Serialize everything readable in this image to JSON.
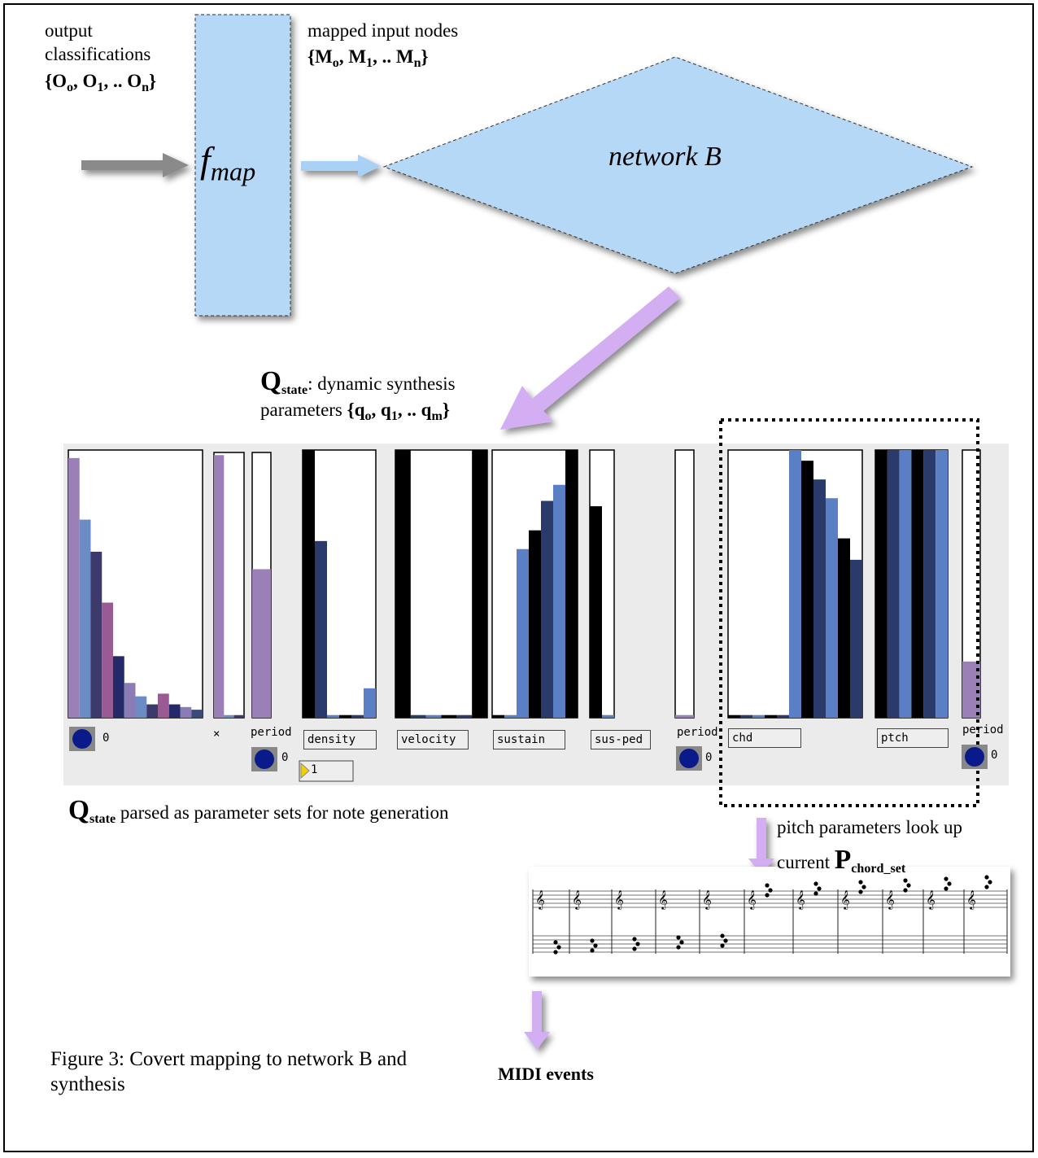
{
  "texts": {
    "output_label": "output classifications",
    "output_set": [
      {
        "text": "{O"
      },
      {
        "text": "o",
        "sub": true
      },
      {
        "text": ", O"
      },
      {
        "text": "1",
        "sub": true
      },
      {
        "text": ", .. O"
      },
      {
        "text": "n",
        "sub": true
      },
      {
        "text": "}"
      }
    ],
    "mapped_label": "mapped input nodes",
    "mapped_set": [
      {
        "text": "{M"
      },
      {
        "text": "o",
        "sub": true
      },
      {
        "text": ", M"
      },
      {
        "text": "1",
        "sub": true
      },
      {
        "text": ", .. M"
      },
      {
        "text": "n",
        "sub": true
      },
      {
        "text": "}"
      }
    ],
    "fmap": [
      {
        "text": "f"
      },
      {
        "text": "map",
        "sub": true
      }
    ],
    "network": "network B",
    "qstate_line1": [
      {
        "text": "Q",
        "bold": true,
        "big": true
      },
      {
        "text": "state",
        "bold": true,
        "sub": true
      },
      {
        "text": ": dynamic synthesis"
      }
    ],
    "qstate_line2": [
      {
        "text": "parameters "
      },
      {
        "text": "{q",
        "bold": true
      },
      {
        "text": "o",
        "bold": true,
        "sub": true
      },
      {
        "text": ", q",
        "bold": true
      },
      {
        "text": "1",
        "bold": true,
        "sub": true
      },
      {
        "text": ", .. q",
        "bold": true
      },
      {
        "text": "m",
        "bold": true,
        "sub": true
      },
      {
        "text": "}",
        "bold": true
      }
    ],
    "parsed": [
      {
        "text": "Q",
        "bold": true,
        "big": true
      },
      {
        "text": "state",
        "bold": true,
        "sub": true
      },
      {
        "text": " parsed as parameter sets for note generation"
      }
    ],
    "pitch_line1": "pitch parameters look up",
    "pitch_line2": [
      {
        "text": "current "
      },
      {
        "text": "P",
        "bold": true,
        "big": true
      },
      {
        "text": "chord_set",
        "bold": true,
        "sub": true
      }
    ],
    "midi": "MIDI events",
    "caption": "Figure 3: Covert mapping to network B and synthesis"
  },
  "panel": {
    "sliders": [
      {
        "values": [
          0.97,
          0.74,
          0.62,
          0.43,
          0.23,
          0.13,
          0.08,
          0.05,
          0.09,
          0.05,
          0.04,
          0.03
        ],
        "colors": [
          "#9a80b6",
          "#6b8cc4",
          "#3b3a6a",
          "#9a5a94",
          "#24296a",
          "#8c7cb6",
          "#6b8cc4",
          "#3b3a6a",
          "#9a5a94",
          "#24296a",
          "#8c7cb6",
          "#3b4a7a"
        ]
      },
      {
        "values": [
          0.99,
          0.01,
          0.01
        ],
        "colors": [
          "#9a80b6",
          "#6b8cc4",
          "#3b3a6a"
        ]
      },
      {
        "values": [
          0.56
        ],
        "colors": [
          "#9a80b6"
        ]
      },
      {
        "values": [
          1.0,
          0.66,
          0.01,
          0.01,
          0.01,
          0.11
        ],
        "colors": [
          "#000000",
          "#2a3a6a",
          "#5b7fc4",
          "#000000",
          "#2a3a6a",
          "#5b7fc4"
        ]
      },
      {
        "values": [
          1.0,
          0.01,
          0.01,
          0.01,
          0.01,
          1.0
        ],
        "colors": [
          "#000000",
          "#2a3a6a",
          "#5b7fc4",
          "#000000",
          "#2a3a6a",
          "#000000"
        ]
      },
      {
        "values": [
          0.01,
          0.01,
          0.63,
          0.7,
          0.81,
          0.87,
          1.0
        ],
        "colors": [
          "#000000",
          "#5b7fc4",
          "#5b7fc4",
          "#000000",
          "#2a3a6a",
          "#5b7fc4",
          "#000000"
        ]
      },
      {
        "values": [
          0.79,
          0.01
        ],
        "colors": [
          "#000000",
          "#5b7fc4"
        ]
      },
      {
        "values": [
          0.01
        ],
        "colors": [
          "#9a80b6"
        ]
      },
      {
        "values": [
          0.01,
          0.01,
          0.01,
          0.01,
          0.01,
          1.0,
          0.96,
          0.89,
          0.82,
          0.67,
          0.59
        ],
        "colors": [
          "#000000",
          "#2a3a6a",
          "#5b7fc4",
          "#000000",
          "#2a3a6a",
          "#5b7fc4",
          "#000000",
          "#2a3a6a",
          "#5b7fc4",
          "#000000",
          "#2a3a6a"
        ]
      },
      {
        "values": [
          1.0,
          1.0,
          1.0,
          1.0,
          1.0,
          1.0
        ],
        "colors": [
          "#000000",
          "#2a3a6a",
          "#5b7fc4",
          "#000000",
          "#2a3a6a",
          "#5b7fc4"
        ]
      },
      {
        "values": [
          0.21
        ],
        "colors": [
          "#9a80b6"
        ]
      }
    ],
    "labels": [
      "0",
      "×",
      "period",
      "0",
      "density",
      "velocity",
      "sustain",
      "sus-ped",
      "period",
      "0",
      "chd",
      "ptch",
      "period",
      "0"
    ],
    "number_box": 1
  }
}
